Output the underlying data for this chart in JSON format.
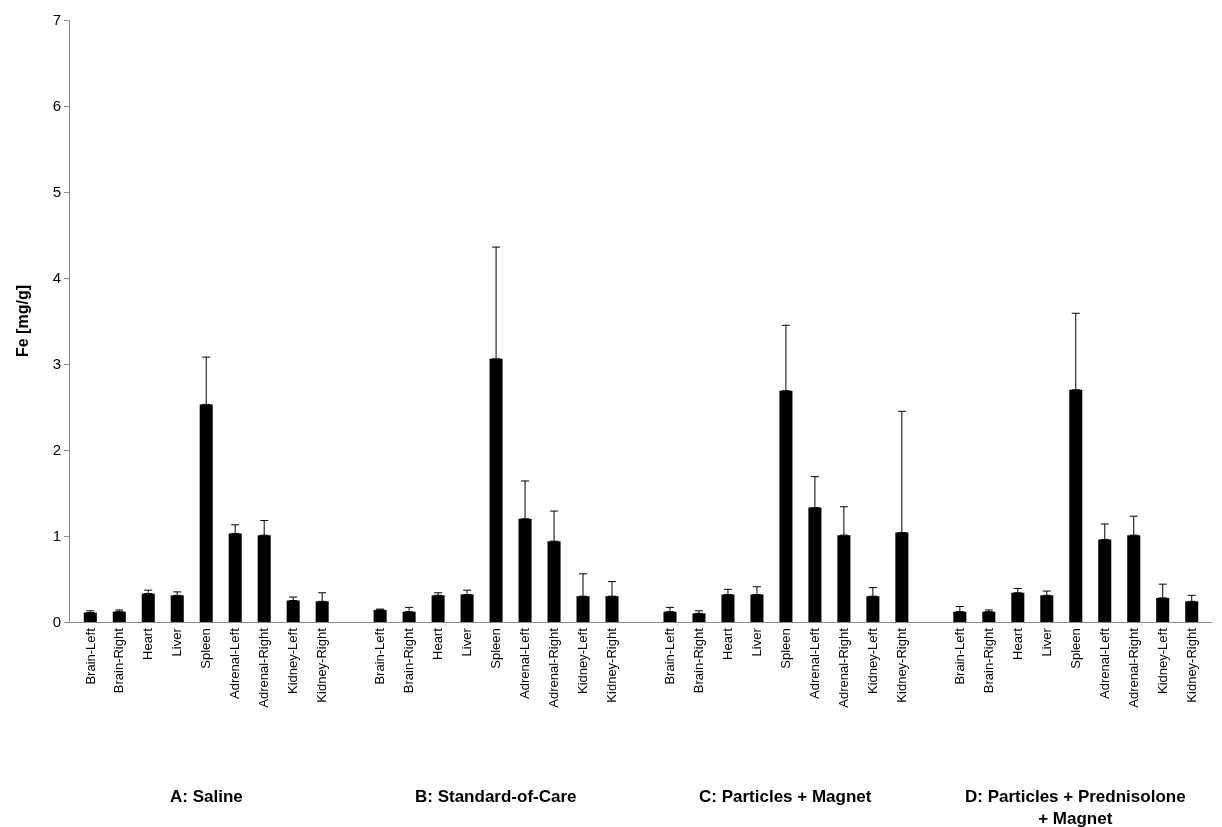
{
  "chart_data": {
    "type": "bar",
    "ylabel": "Fe [mg/g]",
    "categories": [
      "Brain-Left",
      "Brain-Right",
      "Heart",
      "Liver",
      "Spleen",
      "Adrenal-Left",
      "Adrenal-Right",
      "Kidney-Left",
      "Kidney-Right",
      null,
      "Brain-Left",
      "Brain-Right",
      "Heart",
      "Liver",
      "Spleen",
      "Adrenal-Left",
      "Adrenal-Right",
      "Kidney-Left",
      "Kidney-Right",
      null,
      "Brain-Left",
      "Brain-Right",
      "Heart",
      "Liver",
      "Spleen",
      "Adrenal-Left",
      "Adrenal-Right",
      "Kidney-Left",
      "Kidney-Right",
      null,
      "Brain-Left",
      "Brain-Right",
      "Heart",
      "Liver",
      "Spleen",
      "Adrenal-Left",
      "Adrenal-Right",
      "Kidney-Left",
      "Kidney-Right"
    ],
    "values": [
      0.11,
      0.12,
      0.33,
      0.31,
      2.53,
      1.03,
      1.01,
      0.25,
      0.24,
      null,
      0.14,
      0.12,
      0.31,
      0.32,
      3.06,
      1.2,
      0.94,
      0.3,
      0.3,
      null,
      0.12,
      0.1,
      0.32,
      0.32,
      2.69,
      1.33,
      1.01,
      0.3,
      1.04,
      null,
      0.12,
      0.12,
      0.34,
      0.31,
      2.7,
      0.96,
      1.01,
      0.28,
      0.24
    ],
    "errors": [
      [
        0.11,
        0.13
      ],
      [
        0.12,
        0.14
      ],
      [
        0.33,
        0.37
      ],
      [
        0.31,
        0.35
      ],
      [
        2.53,
        3.08
      ],
      [
        1.03,
        1.13
      ],
      [
        1.01,
        1.18
      ],
      [
        0.25,
        0.29
      ],
      [
        0.24,
        0.34
      ],
      null,
      [
        0.14,
        0.15
      ],
      [
        0.12,
        0.17
      ],
      [
        0.31,
        0.34
      ],
      [
        0.32,
        0.37
      ],
      [
        3.06,
        4.36
      ],
      [
        1.2,
        1.64
      ],
      [
        0.94,
        1.29
      ],
      [
        0.3,
        0.56
      ],
      [
        0.3,
        0.47
      ],
      null,
      [
        0.12,
        0.17
      ],
      [
        0.1,
        0.13
      ],
      [
        0.32,
        0.38
      ],
      [
        0.32,
        0.41
      ],
      [
        2.69,
        3.45
      ],
      [
        1.33,
        1.69
      ],
      [
        1.01,
        1.34
      ],
      [
        0.3,
        0.4
      ],
      [
        1.04,
        2.45
      ],
      null,
      [
        0.12,
        0.18
      ],
      [
        0.12,
        0.14
      ],
      [
        0.34,
        0.39
      ],
      [
        0.31,
        0.36
      ],
      [
        2.7,
        3.59
      ],
      [
        0.96,
        1.14
      ],
      [
        1.01,
        1.23
      ],
      [
        0.28,
        0.44
      ],
      [
        0.24,
        0.31
      ]
    ],
    "color": "#000000",
    "ylim": [
      0,
      7
    ],
    "yticks": [
      0,
      1,
      2,
      3,
      4,
      5,
      6,
      7
    ],
    "legend": false,
    "annotations": [
      "A: Saline",
      "B: Standard-of-Care",
      "C: Particles + Magnet",
      "D: Particles + Prednisolone + Magnet"
    ]
  }
}
